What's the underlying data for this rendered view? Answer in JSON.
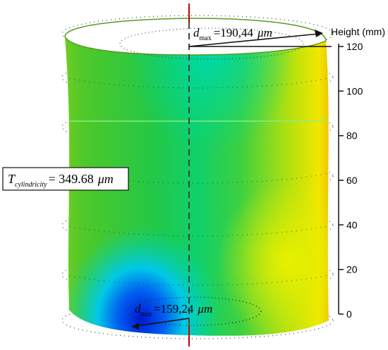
{
  "axis": {
    "title": "Height (mm)",
    "ticks": [
      0,
      20,
      40,
      60,
      80,
      100,
      120
    ],
    "range": [
      0,
      120
    ]
  },
  "annotations": {
    "dmax": {
      "symbol": "d",
      "subscript": "max",
      "value": "=190,44",
      "unit": "μm"
    },
    "dmin": {
      "symbol": "d",
      "subscript": "min",
      "value": "=159,24",
      "unit": "μm"
    },
    "tcyl": {
      "symbol": "T",
      "subscript": "cylindricity",
      "value": "= 349.68",
      "unit": "μm"
    }
  },
  "colors": {
    "surface_green": "#33cc33",
    "surface_cyan": "#00d8c0",
    "surface_blue": "#0020e0",
    "surface_yellow": "#e8f000",
    "surface_orange": "#f0a000",
    "centerline": "#c00000"
  }
}
